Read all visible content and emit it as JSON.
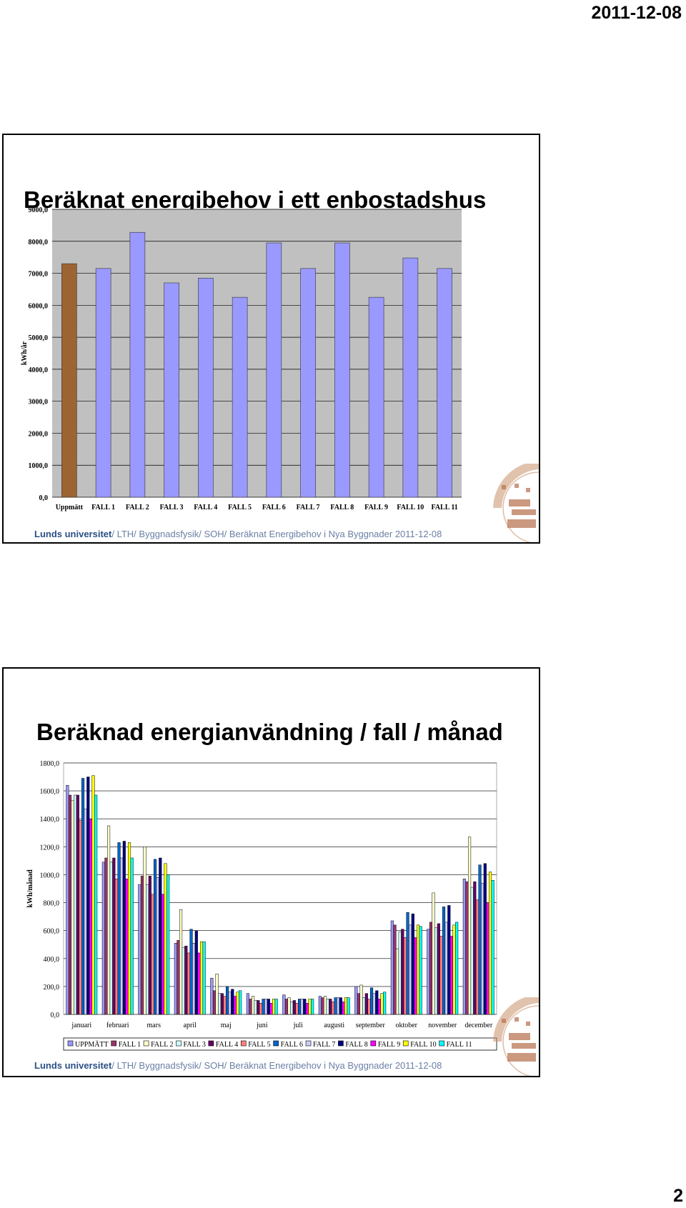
{
  "page": {
    "date": "2011-12-08",
    "number": "2"
  },
  "footer": {
    "org": "Lunds universitet",
    "path": "/ LTH/ Byggnadsfysik/ SOH/ Beräknat Energibehov i Nya Byggnader 2011-12-08"
  },
  "slide1": {
    "title": "Beräknat energibehov i ett enbostadshus"
  },
  "slide2": {
    "title": "Beräknad energianvändning / fall / månad"
  },
  "colors": {
    "uppmatt_bar": "#9c6433",
    "fall_bar": "#9999ff"
  },
  "chart_data": [
    {
      "type": "bar",
      "title": "",
      "ylabel": "kWh/år",
      "xlabel": "",
      "ylim": [
        0,
        9000
      ],
      "yticks": [
        "0,0",
        "1000,0",
        "2000,0",
        "3000,0",
        "4000,0",
        "5000,0",
        "6000,0",
        "7000,0",
        "8000,0",
        "9000,0"
      ],
      "categories": [
        "Uppmätt",
        "FALL 1",
        "FALL 2",
        "FALL 3",
        "FALL 4",
        "FALL 5",
        "FALL 6",
        "FALL 7",
        "FALL 8",
        "FALL 9",
        "FALL 10",
        "FALL 11"
      ],
      "values": [
        7300,
        7150,
        8280,
        6700,
        6850,
        6250,
        7950,
        7150,
        7950,
        6250,
        7480,
        7150
      ],
      "grid": true
    },
    {
      "type": "bar",
      "title": "",
      "ylabel": "kWh/månad",
      "xlabel": "",
      "ylim": [
        0,
        1800
      ],
      "yticks": [
        "0,0",
        "200,0",
        "400,0",
        "600,0",
        "800,0",
        "1000,0",
        "1200,0",
        "1400,0",
        "1600,0",
        "1800,0"
      ],
      "categories": [
        "januari",
        "februari",
        "mars",
        "april",
        "maj",
        "juni",
        "juli",
        "augusti",
        "september",
        "oktober",
        "november",
        "december"
      ],
      "legend_position": "bottom",
      "grid": true,
      "series": [
        {
          "name": "UPPMÄTT",
          "color": "#9999ff",
          "values": [
            1640,
            1090,
            930,
            510,
            260,
            150,
            140,
            130,
            200,
            670,
            610,
            970
          ]
        },
        {
          "name": "FALL 1",
          "color": "#993366",
          "values": [
            1570,
            1120,
            990,
            530,
            170,
            110,
            110,
            120,
            150,
            640,
            660,
            950
          ]
        },
        {
          "name": "FALL 2",
          "color": "#ffffcc",
          "values": [
            1530,
            1350,
            1200,
            750,
            290,
            130,
            120,
            130,
            210,
            470,
            870,
            1270
          ]
        },
        {
          "name": "FALL 3",
          "color": "#ccffff",
          "values": [
            1570,
            1090,
            930,
            480,
            150,
            100,
            90,
            110,
            120,
            590,
            620,
            910
          ]
        },
        {
          "name": "FALL 4",
          "color": "#660066",
          "values": [
            1570,
            1120,
            990,
            490,
            150,
            100,
            100,
            110,
            150,
            610,
            650,
            950
          ]
        },
        {
          "name": "FALL 5",
          "color": "#ff8080",
          "values": [
            1390,
            970,
            860,
            440,
            130,
            80,
            80,
            90,
            110,
            550,
            560,
            820
          ]
        },
        {
          "name": "FALL 6",
          "color": "#0066cc",
          "values": [
            1690,
            1230,
            1110,
            610,
            200,
            110,
            110,
            120,
            190,
            730,
            770,
            1070
          ]
        },
        {
          "name": "FALL 7",
          "color": "#ccccff",
          "values": [
            1470,
            1120,
            980,
            510,
            160,
            110,
            110,
            120,
            150,
            640,
            660,
            940
          ]
        },
        {
          "name": "FALL 8",
          "color": "#000080",
          "values": [
            1700,
            1240,
            1120,
            600,
            180,
            110,
            110,
            120,
            170,
            720,
            780,
            1080
          ]
        },
        {
          "name": "FALL 9",
          "color": "#ff00ff",
          "values": [
            1400,
            970,
            860,
            440,
            130,
            80,
            80,
            90,
            110,
            550,
            560,
            800
          ]
        },
        {
          "name": "FALL 10",
          "color": "#ffff00",
          "values": [
            1710,
            1230,
            1080,
            520,
            160,
            110,
            110,
            120,
            150,
            640,
            640,
            1020
          ]
        },
        {
          "name": "FALL 11",
          "color": "#00ffff",
          "values": [
            1570,
            1120,
            1000,
            520,
            170,
            110,
            110,
            120,
            160,
            630,
            660,
            960
          ]
        }
      ]
    }
  ]
}
